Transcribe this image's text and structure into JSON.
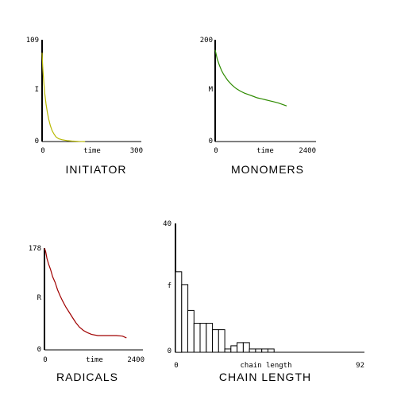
{
  "chart_data": [
    {
      "type": "line",
      "title": "INITIATOR",
      "xlabel": "time",
      "ylabel": "I",
      "xlim": [
        0,
        300
      ],
      "ylim": [
        0,
        109
      ],
      "x_ticks": [
        "0",
        "300"
      ],
      "y_ticks": [
        "0",
        "109"
      ],
      "color": "#b8b800",
      "series": [
        {
          "x": [
            0,
            2,
            5,
            8,
            12,
            16,
            20,
            25,
            30,
            36,
            42,
            50,
            60,
            75,
            90,
            110,
            130
          ],
          "y": [
            95,
            80,
            64,
            52,
            40,
            31,
            24,
            17,
            12,
            8,
            5,
            3,
            2,
            1,
            0.5,
            0.2,
            0
          ]
        }
      ]
    },
    {
      "type": "line",
      "title": "MONOMERS",
      "xlabel": "time",
      "ylabel": "M",
      "xlim": [
        0,
        2400
      ],
      "ylim": [
        0,
        200
      ],
      "x_ticks": [
        "0",
        "2400"
      ],
      "y_ticks": [
        "0",
        "200"
      ],
      "color": "#2e8b00",
      "series": [
        {
          "x": [
            0,
            50,
            100,
            150,
            200,
            300,
            400,
            500,
            600,
            700,
            800,
            900,
            1000,
            1100,
            1200,
            1300,
            1400,
            1500,
            1600,
            1700
          ],
          "y": [
            180,
            162,
            150,
            140,
            132,
            120,
            111,
            104,
            99,
            95,
            92,
            89,
            86,
            84,
            82,
            80,
            78,
            76,
            73,
            70
          ]
        }
      ]
    },
    {
      "type": "line",
      "title": "RADICALS",
      "xlabel": "time",
      "ylabel": "R",
      "xlim": [
        0,
        2400
      ],
      "ylim": [
        0,
        178
      ],
      "x_ticks": [
        "0",
        "2400"
      ],
      "y_ticks": [
        "0",
        "178"
      ],
      "color": "#a00000",
      "series": [
        {
          "x": [
            0,
            30,
            60,
            100,
            150,
            200,
            260,
            320,
            380,
            440,
            520,
            600,
            680,
            760,
            850,
            950,
            1050,
            1150,
            1300,
            1450,
            1600,
            1750,
            1900,
            2000
          ],
          "y": [
            178,
            172,
            160,
            150,
            140,
            128,
            118,
            105,
            95,
            86,
            75,
            66,
            57,
            48,
            40,
            34,
            30,
            27,
            25,
            25,
            25,
            25,
            24,
            21
          ]
        }
      ]
    },
    {
      "type": "bar",
      "title": "CHAIN LENGTH",
      "xlabel": "chain length",
      "ylabel": "f",
      "xlim": [
        0,
        92
      ],
      "ylim": [
        0,
        40
      ],
      "x_ticks": [
        "0",
        "92"
      ],
      "y_ticks": [
        "0",
        "40"
      ],
      "bin_width": 3,
      "values": [
        25,
        21,
        13,
        9,
        9,
        9,
        7,
        7,
        1,
        2,
        3,
        3,
        1,
        1,
        1,
        1
      ]
    }
  ]
}
